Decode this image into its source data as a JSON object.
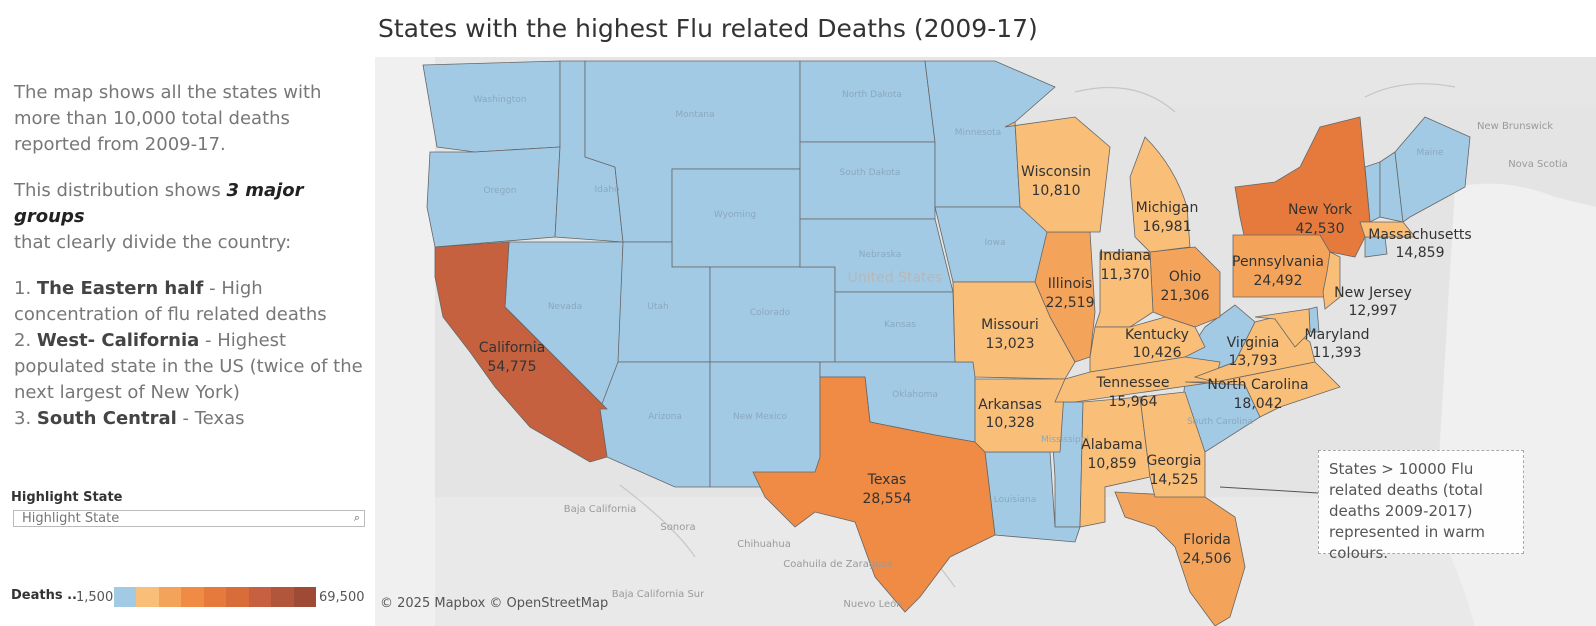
{
  "title": "States with the highest Flu related Deaths (2009-17)",
  "description": {
    "p1": "The map shows all the states with more than 10,000 total deaths reported from 2009-17.",
    "p2_before": "This distribution shows ",
    "p2_emph": "3 major groups",
    "p2_after": "that clearly divide the country:",
    "items": [
      {
        "num": "1. ",
        "head": "The Eastern half",
        "text": " - High concentration of flu related deaths"
      },
      {
        "num": "2. ",
        "head": "West- California",
        "text": " - Highest populated state in the US (twice of the next largest of New York)"
      },
      {
        "num": "3. ",
        "head": "South Central",
        "text": " - Texas"
      }
    ]
  },
  "highlight": {
    "label": "Highlight State",
    "placeholder": "Highlight State"
  },
  "legend": {
    "label": "Deaths ..",
    "min": "1,500",
    "max": "69,500",
    "colors": [
      "#a3cae4",
      "#f9be78",
      "#f4a35a",
      "#ef8b45",
      "#e57a3c",
      "#d86d3a",
      "#c66041",
      "#b1553b",
      "#9e4a34"
    ]
  },
  "attribution": "© 2025 Mapbox © OpenStreetMap",
  "annotation": "States > 10000 Flu related deaths (total deaths 2009-2017) represented in warm colours.",
  "map_labels": {
    "california": "California",
    "california_v": "54,775",
    "texas": "Texas",
    "texas_v": "28,554",
    "newyork": "New York",
    "newyork_v": "42,530",
    "pennsylvania": "Pennsylvania",
    "pennsylvania_v": "24,492",
    "florida": "Florida",
    "florida_v": "24,506",
    "illinois": "Illinois",
    "illinois_v": "22,519",
    "ohio": "Ohio",
    "ohio_v": "21,306",
    "northcarolina": "North Carolina",
    "northcarolina_v": "18,042",
    "michigan": "Michigan",
    "michigan_v": "16,981",
    "tennessee": "Tennessee",
    "tennessee_v": "15,964",
    "georgia": "Georgia",
    "georgia_v": "14,525",
    "massachusetts": "Massachusetts",
    "massachusetts_v": "14,859",
    "virginia": "Virginia",
    "virginia_v": "13,793",
    "missouri": "Missouri",
    "missouri_v": "13,023",
    "newjersey": "New Jersey",
    "newjersey_v": "12,997",
    "maryland": "Maryland",
    "maryland_v": "11,393",
    "indiana": "Indiana",
    "indiana_v": "11,370",
    "alabama": "Alabama",
    "alabama_v": "10,859",
    "wisconsin": "Wisconsin",
    "wisconsin_v": "10,810",
    "kentucky": "Kentucky",
    "kentucky_v": "10,426",
    "arkansas": "Arkansas",
    "arkansas_v": "10,328"
  },
  "geo_labels": {
    "washington": "Washington",
    "oregon": "Oregon",
    "idaho": "Idaho",
    "montana": "Montana",
    "wyoming": "Wyoming",
    "nevada": "Nevada",
    "utah": "Utah",
    "colorado": "Colorado",
    "arizona": "Arizona",
    "newmexico": "New Mexico",
    "northdakota": "North Dakota",
    "southdakota": "South Dakota",
    "nebraska": "Nebraska",
    "kansas": "Kansas",
    "oklahoma": "Oklahoma",
    "minnesota": "Minnesota",
    "iowa": "Iowa",
    "mississippi": "Mississippi",
    "louisiana": "Louisiana",
    "southcarolina": "South Carolina",
    "maine": "Maine",
    "unitedstates": "United States",
    "newbrunswick": "New Brunswick",
    "novascotia": "Nova Scotia",
    "bajacalifornia": "Baja California",
    "sonora": "Sonora",
    "chihuahua": "Chihuahua",
    "coahuila": "Coahuila de Zaragoza",
    "bajacaliforniasur": "Baja California Sur",
    "nuevoleon": "Nuevo León"
  }
}
